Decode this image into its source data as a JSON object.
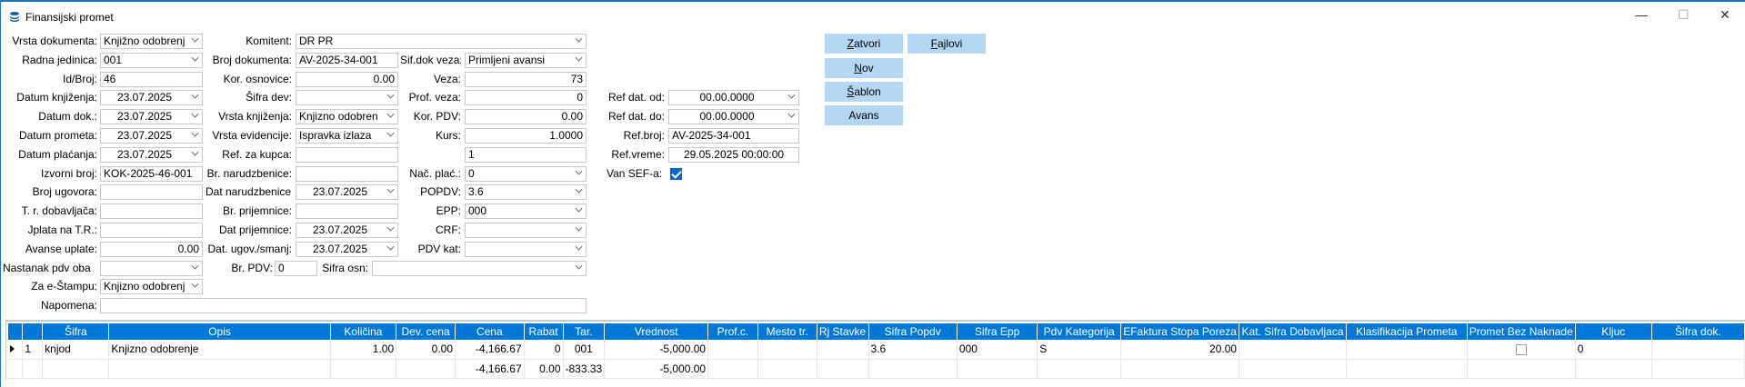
{
  "window": {
    "title": "Finansijski promet",
    "minimize": "—",
    "maximize": "☐",
    "close": "✕"
  },
  "form": {
    "vrsta_dokumenta": {
      "label": "Vrsta dokumenta:",
      "value": "Knjižno odobrenj"
    },
    "radna_jedinica": {
      "label": "Radna jedinica:",
      "value": "001"
    },
    "id_broj": {
      "label": "Id/Broj:",
      "value": "46"
    },
    "datum_knjizenja": {
      "label": "Datum knjiženja:",
      "value": "23.07.2025"
    },
    "datum_dok": {
      "label": "Datum dok.:",
      "value": "23.07.2025"
    },
    "datum_prometa": {
      "label": "Datum prometa:",
      "value": "23.07.2025"
    },
    "datum_placanja": {
      "label": "Datum plaćanja:",
      "value": "23.07.2025"
    },
    "izvorni_broj": {
      "label": "Izvorni broj:",
      "value": "KOK-2025-46-001"
    },
    "broj_ugovora": {
      "label": "Broj ugovora:",
      "value": ""
    },
    "tr_dobavljaca": {
      "label": "T. r. dobavljača:",
      "value": ""
    },
    "uplata_tr": {
      "label": "Jplata na T.R.:",
      "value": ""
    },
    "avanse_uplate": {
      "label": "Avanse uplate:",
      "value": "0.00"
    },
    "nastanak_pdv": {
      "label": "Nastanak pdv oba",
      "value": ""
    },
    "za_estampu": {
      "label": "Za e-Štampu:",
      "value": "Knjizno odobrenj"
    },
    "napomena": {
      "label": "Napomena:",
      "value": ""
    },
    "komitent": {
      "label": "Komitent:",
      "value": "DR PR"
    },
    "broj_dokumenta": {
      "label": "Broj dokumenta:",
      "value": "AV-2025-34-001"
    },
    "kor_osnovice": {
      "label": "Kor. osnovice:",
      "value": "0.00"
    },
    "sifra_dev": {
      "label": "Šifra dev:",
      "value": ""
    },
    "vrsta_knjizenja": {
      "label": "Vrsta knjiženja:",
      "value": "Knjizno odobren"
    },
    "vrsta_evidencije": {
      "label": "Vrsta evidencije:",
      "value": "Ispravka izlaza"
    },
    "ref_za_kupca": {
      "label": "Ref. za kupca:",
      "value": ""
    },
    "br_narudzbenice": {
      "label": "Br. narudzbenice:",
      "value": ""
    },
    "dat_narudzbenice": {
      "label": "Dat narudzbenice:",
      "value": "23.07.2025"
    },
    "br_prijemnice": {
      "label": "Br. prijemnice:",
      "value": ""
    },
    "dat_prijemnice": {
      "label": "Dat prijemnice:",
      "value": "23.07.2025"
    },
    "dat_ugov": {
      "label": "Dat. ugov./smanj:",
      "value": "23.07.2025"
    },
    "br_pdv": {
      "label": "Br. PDV:",
      "value": "0"
    },
    "sif_dok_veza": {
      "label": "Sif.dok veza:",
      "value": "Primljeni avansi"
    },
    "veza": {
      "label": "Veza:",
      "value": "73"
    },
    "prof_veza": {
      "label": "Prof. veza:",
      "value": "0"
    },
    "kor_pdv": {
      "label": "Kor. PDV:",
      "value": "0.00"
    },
    "kurs": {
      "label": "Kurs:",
      "value": "1.0000"
    },
    "unlabeled": {
      "value": "1"
    },
    "nac_plac": {
      "label": "Nač. plać.:",
      "value": "0"
    },
    "popdv": {
      "label": "POPDV:",
      "value": "3.6"
    },
    "epp": {
      "label": "EPP:",
      "value": "000"
    },
    "crf": {
      "label": "CRF:",
      "value": ""
    },
    "pdv_kat": {
      "label": "PDV kat:",
      "value": ""
    },
    "sifra_osn": {
      "label": "Sifra osn:",
      "value": ""
    },
    "ref_dat_od": {
      "label": "Ref dat. od:",
      "value": "00.00.0000"
    },
    "ref_dat_do": {
      "label": "Ref dat. do:",
      "value": "00.00.0000"
    },
    "ref_broj": {
      "label": "Ref.broj:",
      "value": "AV-2025-34-001"
    },
    "ref_vreme": {
      "label": "Ref.vreme:",
      "value": "29.05.2025 00:00:00"
    },
    "van_sef": {
      "label": "Van SEF-a:",
      "checked": true
    }
  },
  "buttons": {
    "zatvori": "Zatvori",
    "fajlovi": "Fajlovi",
    "nov": "Nov",
    "sablon": "Šablon",
    "avans": "Avans"
  },
  "grid": {
    "columns": [
      "",
      "",
      "Šifra",
      "Opis",
      "Količina",
      "Dev. cena",
      "Cena",
      "Rabat",
      "Tar.",
      "Vrednost",
      "Prof.c.",
      "Mesto tr.",
      "Rj Stavke",
      "Sifra Popdv",
      "Sifra Epp",
      "Pdv Kategorija",
      "EFaktura Stopa Poreza",
      "Kat. Sifra Dobavljaca",
      "Klasifikacija Prometa",
      "Promet Bez Naknade",
      "Kljuc",
      "Šifra dok."
    ],
    "rows": [
      {
        "num": "1",
        "sifra": "knjod",
        "opis": "Knjizno odobrenje",
        "kolicina": "1.00",
        "dev_cena": "0.00",
        "cena": "-4,166.67",
        "rabat": "0",
        "tar": "001",
        "vrednost": "-5,000.00",
        "sifra_popdv": "3.6",
        "sifra_epp": "000",
        "pdv_kategorija": "S",
        "efaktura_stopa": "20.00",
        "promet_bez_naknade": false,
        "kljuc": "0"
      }
    ],
    "totals": {
      "cena": "-4,166.67",
      "rabat": "0.00",
      "tar": "-833.33",
      "vrednost": "-5,000.00"
    }
  },
  "colors": {
    "header": "#0078d7",
    "button": "#b3d6f2",
    "accent": "#1a73c8"
  }
}
